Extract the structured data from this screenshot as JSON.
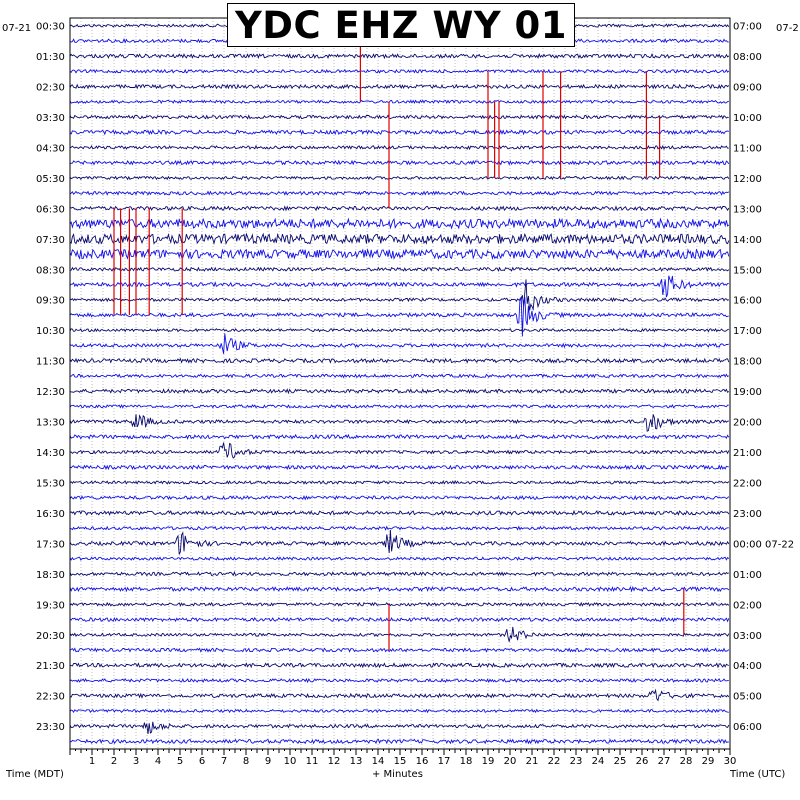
{
  "chart_data": {
    "type": "line",
    "title": "YDC EHZ WY 01",
    "xlabel": "+ Minutes",
    "left_axis_label": "Time (MDT)",
    "right_axis_label": "Time (UTC)",
    "date_left": "07-21",
    "date_right": "07-2",
    "xlim": [
      0,
      30
    ],
    "x_ticks": [
      "1",
      "2",
      "3",
      "4",
      "5",
      "6",
      "7",
      "8",
      "9",
      "10",
      "11",
      "12",
      "13",
      "14",
      "15",
      "16",
      "17",
      "18",
      "19",
      "20",
      "21",
      "22",
      "23",
      "24",
      "25",
      "26",
      "27",
      "28",
      "29",
      "30"
    ],
    "left_time_labels": [
      "00:30",
      "01:30",
      "02:30",
      "03:30",
      "04:30",
      "05:30",
      "06:30",
      "07:30",
      "08:30",
      "09:30",
      "10:30",
      "11:30",
      "12:30",
      "13:30",
      "14:30",
      "15:30",
      "16:30",
      "17:30",
      "18:30",
      "19:30",
      "20:30",
      "21:30",
      "22:30",
      "23:30"
    ],
    "right_time_labels": [
      "07:00",
      "08:00",
      "09:00",
      "10:00",
      "11:00",
      "12:00",
      "13:00",
      "14:00",
      "15:00",
      "16:00",
      "17:00",
      "18:00",
      "19:00",
      "20:00",
      "21:00",
      "22:00",
      "23:00",
      "00:00 07-22",
      "01:00",
      "02:00",
      "03:00",
      "04:00",
      "05:00",
      "06:00"
    ],
    "trace_count": 48,
    "trace_colors": [
      "#0a0a6e",
      "#1010e8"
    ],
    "clip_color": "#e00000",
    "grid": true,
    "events": [
      {
        "row": 21,
        "minute": 7.0,
        "amplitude": 12
      },
      {
        "row": 19,
        "minute": 20.5,
        "amplitude": 24
      },
      {
        "row": 18,
        "minute": 20.7,
        "amplitude": 20
      },
      {
        "row": 17,
        "minute": 27.0,
        "amplitude": 16
      },
      {
        "row": 26,
        "minute": 26.3,
        "amplitude": 14
      },
      {
        "row": 28,
        "minute": 7.0,
        "amplitude": 13
      },
      {
        "row": 34,
        "minute": 5.0,
        "amplitude": 14
      },
      {
        "row": 34,
        "minute": 14.5,
        "amplitude": 14
      },
      {
        "row": 40,
        "minute": 20.0,
        "amplitude": 10
      },
      {
        "row": 26,
        "minute": 3.0,
        "amplitude": 9
      },
      {
        "row": 44,
        "minute": 26.5,
        "amplitude": 8
      },
      {
        "row": 46,
        "minute": 3.5,
        "amplitude": 8
      }
    ],
    "clip_lines": [
      {
        "minute": 13.2,
        "row_start": 1,
        "row_end": 5
      },
      {
        "minute": 14.5,
        "row_start": 5,
        "row_end": 12
      },
      {
        "minute": 19.0,
        "row_start": 3,
        "row_end": 10
      },
      {
        "minute": 19.3,
        "row_start": 5,
        "row_end": 10
      },
      {
        "minute": 19.5,
        "row_start": 5,
        "row_end": 10
      },
      {
        "minute": 21.5,
        "row_start": 3,
        "row_end": 10
      },
      {
        "minute": 22.3,
        "row_start": 3,
        "row_end": 10
      },
      {
        "minute": 26.2,
        "row_start": 3,
        "row_end": 10
      },
      {
        "minute": 26.8,
        "row_start": 6,
        "row_end": 10
      },
      {
        "minute": 2.0,
        "row_start": 12,
        "row_end": 19
      },
      {
        "minute": 2.3,
        "row_start": 12,
        "row_end": 19
      },
      {
        "minute": 2.7,
        "row_start": 12,
        "row_end": 19
      },
      {
        "minute": 3.0,
        "row_start": 12,
        "row_end": 19
      },
      {
        "minute": 3.6,
        "row_start": 12,
        "row_end": 19
      },
      {
        "minute": 5.1,
        "row_start": 12,
        "row_end": 19
      },
      {
        "minute": 14.5,
        "row_start": 38,
        "row_end": 41
      },
      {
        "minute": 27.9,
        "row_start": 37,
        "row_end": 40
      }
    ]
  }
}
